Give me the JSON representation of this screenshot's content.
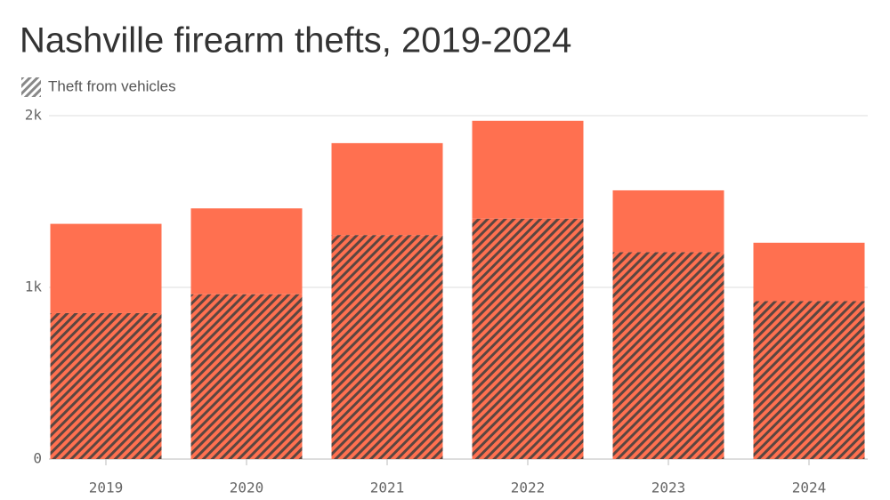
{
  "chart_data": {
    "type": "stacked_bar",
    "title": "Nashville firearm thefts, 2019-2024",
    "categories": [
      "2019",
      "2020",
      "2021",
      "2022",
      "2023",
      "2024"
    ],
    "series": [
      {
        "name": "Theft from vehicles",
        "color": "#ff7050",
        "pattern": "hatch",
        "values": [
          850,
          960,
          1305,
          1400,
          1205,
          920
        ]
      },
      {
        "color": "#ff7050",
        "values": [
          520,
          500,
          535,
          570,
          360,
          340
        ]
      }
    ],
    "ylim": [
      0,
      2000
    ],
    "yticks": [
      0,
      {
        "value": 1000,
        "label": "1k"
      },
      {
        "value": 2000,
        "label": "2k"
      }
    ],
    "grid": true
  }
}
